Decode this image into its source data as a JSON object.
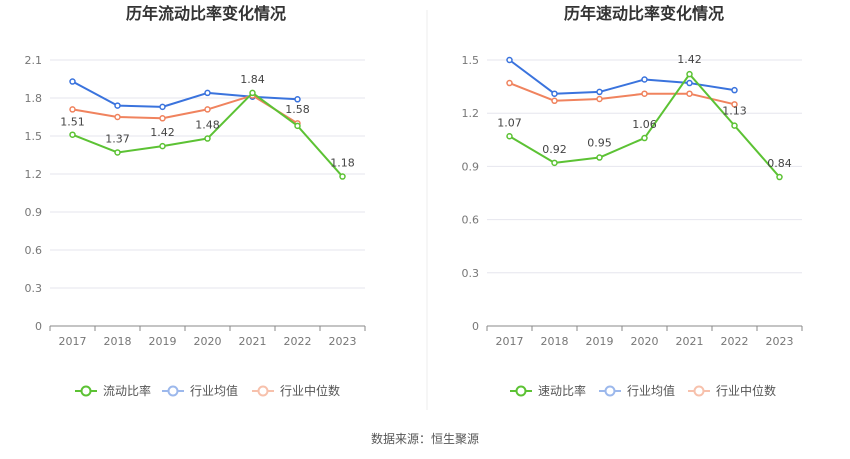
{
  "colors": {
    "green": "#5cc234",
    "blue": "#3a73dd",
    "orange": "#f0835e",
    "legend_blue": "#9cb8ec",
    "legend_orange": "#f7c1ac",
    "grid": "#e6e6ee",
    "axis": "#888888"
  },
  "footer": {
    "source": "数据来源：恒生聚源"
  },
  "chart_data": [
    {
      "type": "line",
      "title": "历年流动比率变化情况",
      "categories": [
        "2017",
        "2018",
        "2019",
        "2020",
        "2021",
        "2022",
        "2023"
      ],
      "yticks": [
        "0",
        "0.3",
        "0.6",
        "0.9",
        "1.2",
        "1.5",
        "1.8",
        "2.1"
      ],
      "ylim": [
        0,
        2.1
      ],
      "grid": true,
      "legend_position": "bottom",
      "series": [
        {
          "name": "流动比率",
          "color_key": "green",
          "values": [
            1.51,
            1.37,
            1.42,
            1.48,
            1.84,
            1.58,
            1.18
          ],
          "labels": [
            "1.51",
            "1.37",
            "1.42",
            "1.48",
            "1.84",
            "1.58",
            "1.18"
          ],
          "show_labels": true
        },
        {
          "name": "行业均值",
          "color_key": "blue",
          "values": [
            1.93,
            1.74,
            1.73,
            1.84,
            1.81,
            1.79,
            null
          ],
          "show_labels": false
        },
        {
          "name": "行业中位数",
          "color_key": "orange",
          "values": [
            1.71,
            1.65,
            1.64,
            1.71,
            1.82,
            1.6,
            null
          ],
          "show_labels": false
        }
      ]
    },
    {
      "type": "line",
      "title": "历年速动比率变化情况",
      "categories": [
        "2017",
        "2018",
        "2019",
        "2020",
        "2021",
        "2022",
        "2023"
      ],
      "yticks": [
        "0",
        "0.3",
        "0.6",
        "0.9",
        "1.2",
        "1.5"
      ],
      "ylim": [
        0,
        1.5
      ],
      "grid": true,
      "legend_position": "bottom",
      "series": [
        {
          "name": "速动比率",
          "color_key": "green",
          "values": [
            1.07,
            0.92,
            0.95,
            1.06,
            1.42,
            1.13,
            0.84
          ],
          "labels": [
            "1.07",
            "0.92",
            "0.95",
            "1.06",
            "1.42",
            "1.13",
            "0.84"
          ],
          "show_labels": true
        },
        {
          "name": "行业均值",
          "color_key": "blue",
          "values": [
            1.5,
            1.31,
            1.32,
            1.39,
            1.37,
            1.33,
            null
          ],
          "show_labels": false
        },
        {
          "name": "行业中位数",
          "color_key": "orange",
          "values": [
            1.37,
            1.27,
            1.28,
            1.31,
            1.31,
            1.25,
            null
          ],
          "show_labels": false
        }
      ]
    }
  ]
}
